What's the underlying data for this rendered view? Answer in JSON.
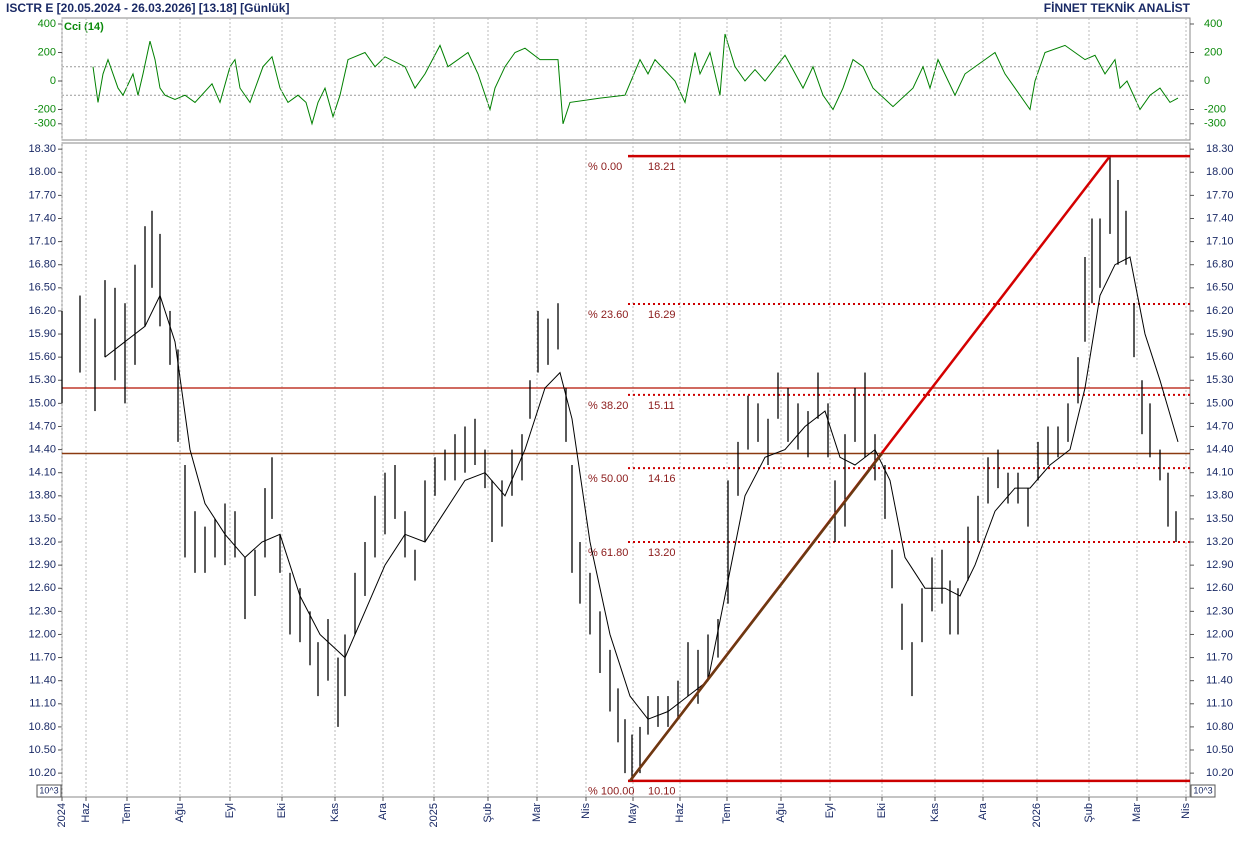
{
  "header": {
    "title": "ISCTR E  [20.05.2024 - 26.03.2026]  [13.18]  [Günlük]",
    "brand": "FİNNET TEKNİK ANALİST",
    "axis_note": "10^3"
  },
  "chart_data": [
    {
      "type": "line",
      "label": "Cci (14)",
      "color": "#008000",
      "xlim": [
        0,
        22.56
      ],
      "ylim": [
        -414,
        442
      ],
      "yticks": [
        -300,
        -200,
        0,
        200,
        400
      ],
      "ref_lines": [
        100,
        -100
      ],
      "x": [
        0.62,
        0.72,
        0.82,
        0.92,
        1.12,
        1.22,
        1.42,
        1.52,
        1.62,
        1.76,
        1.86,
        1.96,
        2.06,
        2.26,
        2.46,
        2.66,
        3.0,
        3.16,
        3.36,
        3.46,
        3.56,
        3.76,
        4.02,
        4.2,
        4.36,
        4.52,
        4.72,
        4.88,
        5.0,
        5.12,
        5.26,
        5.42,
        5.56,
        5.72,
        6.06,
        6.26,
        6.46,
        6.86,
        7.06,
        7.26,
        7.56,
        7.72,
        8.12,
        8.32,
        8.56,
        8.66,
        8.86,
        9.06,
        9.26,
        9.56,
        9.92,
        10.02,
        10.16,
        10.76,
        11.26,
        11.56,
        11.72,
        11.86,
        12.26,
        12.46,
        12.66,
        12.76,
        12.96,
        13.16,
        13.26,
        13.46,
        13.66,
        13.86,
        14.06,
        14.46,
        14.62,
        14.82,
        15.02,
        15.22,
        15.42,
        15.62,
        15.82,
        16.02,
        16.22,
        16.62,
        17.02,
        17.22,
        17.36,
        17.52,
        17.86,
        18.06,
        18.46,
        18.66,
        18.86,
        19.06,
        19.36,
        19.46,
        19.66,
        20.06,
        20.26,
        20.46,
        20.66,
        20.86,
        21.06,
        21.16,
        21.3,
        21.56,
        21.76,
        21.96,
        22.16,
        22.32
      ],
      "values": [
        100,
        -150,
        50,
        150,
        -50,
        -100,
        50,
        -100,
        50,
        280,
        150,
        -50,
        -100,
        -130,
        -100,
        -150,
        -20,
        -150,
        100,
        150,
        -50,
        -150,
        100,
        170,
        -50,
        -150,
        -100,
        -150,
        -300,
        -150,
        -50,
        -250,
        -100,
        150,
        200,
        100,
        170,
        100,
        -50,
        50,
        250,
        100,
        200,
        50,
        -200,
        -50,
        100,
        200,
        230,
        150,
        150,
        -300,
        -150,
        -120,
        -100,
        150,
        50,
        150,
        0,
        -150,
        200,
        50,
        200,
        -100,
        330,
        100,
        0,
        80,
        0,
        180,
        80,
        -50,
        100,
        -100,
        -200,
        -50,
        150,
        100,
        -50,
        -180,
        -50,
        100,
        -50,
        150,
        -100,
        50,
        150,
        200,
        50,
        -50,
        -200,
        0,
        200,
        250,
        200,
        150,
        180,
        50,
        150,
        -50,
        0,
        -200,
        -100,
        -50,
        -150,
        -120
      ]
    },
    {
      "type": "hilo",
      "color": "#000000",
      "xlim": [
        0,
        22.56
      ],
      "ylim": [
        9.89,
        18.38
      ],
      "xticks": [
        {
          "value": 0,
          "label": "2024"
        },
        {
          "value": 0.48,
          "label": "Haz"
        },
        {
          "value": 1.3,
          "label": "Tem"
        },
        {
          "value": 2.36,
          "label": "Ağu"
        },
        {
          "value": 3.36,
          "label": "Eyl"
        },
        {
          "value": 4.4,
          "label": "Eki"
        },
        {
          "value": 5.46,
          "label": "Kas"
        },
        {
          "value": 6.42,
          "label": "Ara"
        },
        {
          "value": 7.44,
          "label": "2025"
        },
        {
          "value": 8.52,
          "label": "Şub"
        },
        {
          "value": 9.5,
          "label": "Mar"
        },
        {
          "value": 10.48,
          "label": "Nis"
        },
        {
          "value": 11.42,
          "label": "May"
        },
        {
          "value": 12.36,
          "label": "Haz"
        },
        {
          "value": 13.3,
          "label": "Tem"
        },
        {
          "value": 14.38,
          "label": "Ağu"
        },
        {
          "value": 15.36,
          "label": "Eyl"
        },
        {
          "value": 16.4,
          "label": "Eki"
        },
        {
          "value": 17.46,
          "label": "Kas"
        },
        {
          "value": 18.42,
          "label": "Ara"
        },
        {
          "value": 19.5,
          "label": "2026"
        },
        {
          "value": 20.54,
          "label": "Şub"
        },
        {
          "value": 21.5,
          "label": "Mar"
        },
        {
          "value": 22.48,
          "label": "Nis"
        }
      ],
      "yticks": [
        {
          "value": 10.2,
          "label": "10.20"
        },
        {
          "value": 10.5,
          "label": "10.50"
        },
        {
          "value": 10.8,
          "label": "10.80"
        },
        {
          "value": 11.1,
          "label": "11.10"
        },
        {
          "value": 11.4,
          "label": "11.40"
        },
        {
          "value": 11.7,
          "label": "11.70"
        },
        {
          "value": 12,
          "label": "12.00"
        },
        {
          "value": 12.3,
          "label": "12.30"
        },
        {
          "value": 12.6,
          "label": "12.60"
        },
        {
          "value": 12.9,
          "label": "12.90"
        },
        {
          "value": 13.2,
          "label": "13.20"
        },
        {
          "value": 13.5,
          "label": "13.50"
        },
        {
          "value": 13.8,
          "label": "13.80"
        },
        {
          "value": 14.1,
          "label": "14.10"
        },
        {
          "value": 14.4,
          "label": "14.40"
        },
        {
          "value": 14.7,
          "label": "14.70"
        },
        {
          "value": 15,
          "label": "15.00"
        },
        {
          "value": 15.3,
          "label": "15.30"
        },
        {
          "value": 15.6,
          "label": "15.60"
        },
        {
          "value": 15.9,
          "label": "15.90"
        },
        {
          "value": 16.2,
          "label": "16.20"
        },
        {
          "value": 16.5,
          "label": "16.50"
        },
        {
          "value": 16.8,
          "label": "16.80"
        },
        {
          "value": 17.1,
          "label": "17.10"
        },
        {
          "value": 17.4,
          "label": "17.40"
        },
        {
          "value": 17.7,
          "label": "17.70"
        },
        {
          "value": 18,
          "label": "18.00"
        },
        {
          "value": 18.3,
          "label": "18.30"
        }
      ],
      "x": [
        0,
        0.36,
        0.66,
        0.86,
        1.06,
        1.26,
        1.46,
        1.66,
        1.8,
        1.96,
        2.16,
        2.32,
        2.46,
        2.66,
        2.86,
        3.06,
        3.26,
        3.46,
        3.66,
        3.86,
        4.06,
        4.2,
        4.36,
        4.56,
        4.76,
        4.96,
        5.12,
        5.32,
        5.52,
        5.66,
        5.86,
        6.06,
        6.26,
        6.46,
        6.66,
        6.86,
        7.06,
        7.26,
        7.46,
        7.66,
        7.86,
        8.06,
        8.26,
        8.46,
        8.6,
        8.8,
        9.0,
        9.2,
        9.36,
        9.52,
        9.72,
        9.92,
        10.08,
        10.2,
        10.36,
        10.56,
        10.76,
        10.96,
        11.12,
        11.26,
        11.4,
        11.56,
        11.72,
        11.92,
        12.12,
        12.32,
        12.52,
        12.72,
        12.92,
        13.12,
        13.32,
        13.52,
        13.72,
        13.92,
        14.12,
        14.32,
        14.52,
        14.72,
        14.92,
        15.12,
        15.32,
        15.46,
        15.66,
        15.86,
        16.06,
        16.26,
        16.46,
        16.6,
        16.8,
        17.0,
        17.2,
        17.4,
        17.6,
        17.76,
        17.92,
        18.12,
        18.32,
        18.52,
        18.72,
        18.92,
        19.12,
        19.32,
        19.52,
        19.72,
        19.92,
        20.12,
        20.32,
        20.46,
        20.6,
        20.76,
        20.96,
        21.12,
        21.28,
        21.44,
        21.6,
        21.76,
        21.96,
        22.12,
        22.28
      ],
      "low": [
        15.0,
        15.4,
        14.9,
        15.6,
        15.3,
        15.0,
        15.5,
        16.0,
        16.5,
        16.0,
        15.5,
        14.5,
        13.0,
        12.8,
        12.8,
        13.0,
        12.9,
        13.0,
        12.2,
        12.5,
        13.0,
        13.5,
        12.8,
        12.0,
        11.9,
        11.6,
        11.2,
        11.4,
        10.8,
        11.2,
        12.0,
        12.5,
        13.0,
        13.3,
        13.5,
        13.0,
        12.7,
        13.2,
        13.8,
        14.0,
        14.0,
        14.1,
        14.2,
        13.9,
        13.2,
        13.4,
        13.8,
        14.0,
        14.8,
        15.4,
        15.5,
        15.7,
        14.5,
        12.8,
        12.4,
        12.0,
        11.5,
        11.0,
        10.6,
        10.2,
        10.1,
        10.2,
        10.7,
        10.8,
        10.8,
        10.9,
        11.2,
        11.1,
        11.4,
        11.7,
        12.4,
        13.8,
        14.4,
        14.5,
        14.2,
        14.8,
        14.5,
        14.4,
        14.3,
        14.8,
        14.3,
        13.2,
        13.4,
        14.5,
        14.3,
        14.0,
        13.5,
        12.6,
        11.8,
        11.2,
        11.9,
        12.3,
        12.4,
        12.0,
        12.0,
        12.7,
        13.2,
        13.7,
        13.9,
        13.7,
        13.7,
        13.4,
        14.0,
        14.2,
        14.3,
        14.5,
        15.0,
        15.8,
        16.3,
        16.5,
        17.2,
        16.8,
        16.8,
        15.6,
        14.6,
        14.3,
        14.0,
        13.4,
        13.2
      ],
      "high": [
        16.2,
        16.4,
        16.1,
        16.6,
        16.5,
        16.3,
        16.8,
        17.3,
        17.5,
        17.2,
        16.2,
        15.7,
        14.2,
        13.6,
        13.4,
        13.5,
        13.7,
        13.6,
        13.0,
        13.1,
        13.9,
        14.3,
        13.3,
        12.8,
        12.6,
        12.3,
        11.9,
        12.2,
        11.7,
        12.0,
        12.8,
        13.2,
        13.8,
        14.1,
        14.2,
        13.6,
        13.1,
        14.0,
        14.3,
        14.4,
        14.6,
        14.7,
        14.8,
        14.4,
        14.0,
        14.0,
        14.4,
        14.6,
        15.3,
        16.2,
        16.1,
        16.3,
        15.2,
        14.2,
        13.2,
        12.8,
        12.3,
        11.8,
        11.3,
        10.9,
        10.7,
        10.8,
        11.2,
        11.2,
        11.2,
        11.4,
        11.9,
        11.8,
        12.0,
        12.2,
        14.0,
        14.5,
        15.1,
        15.0,
        14.8,
        15.4,
        15.2,
        15.0,
        14.9,
        15.4,
        15.0,
        14.0,
        14.6,
        15.2,
        15.4,
        14.6,
        14.2,
        13.1,
        12.4,
        11.9,
        12.6,
        13.0,
        13.1,
        12.7,
        12.6,
        13.4,
        13.8,
        14.3,
        14.4,
        14.1,
        14.1,
        13.9,
        14.5,
        14.7,
        14.7,
        15.0,
        15.6,
        16.9,
        17.4,
        17.4,
        18.21,
        17.9,
        17.5,
        16.3,
        15.3,
        15.0,
        14.4,
        14.1,
        13.6
      ],
      "ma": {
        "color": "#000000",
        "x": [
          0.86,
          1.26,
          1.66,
          1.96,
          2.26,
          2.56,
          2.86,
          3.26,
          3.66,
          4.0,
          4.36,
          4.76,
          5.16,
          5.66,
          6.06,
          6.46,
          6.86,
          7.26,
          7.66,
          8.06,
          8.46,
          8.86,
          9.26,
          9.66,
          9.96,
          10.2,
          10.56,
          10.96,
          11.36,
          11.72,
          12.12,
          12.52,
          12.92,
          13.26,
          13.66,
          14.06,
          14.46,
          14.86,
          15.26,
          15.56,
          15.86,
          16.26,
          16.56,
          16.86,
          17.26,
          17.66,
          17.96,
          18.26,
          18.66,
          19.06,
          19.36,
          19.76,
          20.16,
          20.46,
          20.76,
          21.06,
          21.36,
          21.66,
          21.96,
          22.32
        ],
        "values": [
          15.6,
          15.8,
          16.0,
          16.4,
          15.8,
          14.4,
          13.7,
          13.3,
          13.0,
          13.2,
          13.3,
          12.5,
          12.0,
          11.7,
          12.3,
          12.9,
          13.3,
          13.2,
          13.6,
          14.0,
          14.1,
          13.8,
          14.4,
          15.2,
          15.4,
          14.8,
          13.2,
          12.0,
          11.2,
          10.9,
          11.0,
          11.2,
          11.4,
          12.5,
          13.8,
          14.3,
          14.4,
          14.7,
          14.9,
          14.3,
          14.2,
          14.4,
          14.0,
          13.0,
          12.6,
          12.6,
          12.5,
          12.9,
          13.6,
          13.9,
          13.9,
          14.2,
          14.4,
          15.2,
          16.4,
          16.8,
          16.9,
          15.9,
          15.3,
          14.5
        ]
      },
      "hlines": {
        "color": "#c0392b",
        "values": [
          15.2,
          14.35
        ]
      },
      "fib": {
        "color": "#cc0000",
        "start": 11.36,
        "labels": [
          "% 0.00",
          "% 23.60",
          "% 38.20",
          "% 50.00",
          "% 61.80",
          "% 100.00"
        ],
        "values": [
          18.21,
          16.29,
          15.11,
          14.16,
          13.2,
          10.1
        ],
        "value_labels": [
          "18.21",
          "16.29",
          "15.11",
          "14.16",
          "13.20",
          "10.10"
        ]
      },
      "trendlines": [
        {
          "color": "#d40000",
          "x": [
            11.36,
            20.96
          ],
          "y": [
            10.1,
            18.21
          ]
        },
        {
          "color": "#6b3a12",
          "x": [
            11.36,
            16.4
          ],
          "y": [
            10.1,
            14.35
          ]
        }
      ]
    }
  ]
}
